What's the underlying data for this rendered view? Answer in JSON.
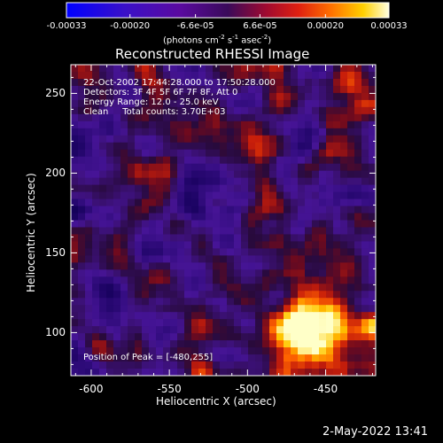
{
  "colorbar": {
    "tick_labels": [
      "-0.00033",
      "-0.00020",
      "-6.6e-05",
      "6.6e-05",
      "0.00020",
      "0.00033"
    ],
    "tick_values": [
      -0.00033,
      -0.0002,
      -6.6e-05,
      6.6e-05,
      0.0002,
      0.00033
    ],
    "range": [
      -0.00033,
      0.00033
    ],
    "units_prefix": "(photons cm",
    "units_exp1": "-2",
    "units_mid": " s",
    "units_exp2": "-1",
    "units_mid2": " asec",
    "units_exp3": "-2",
    "units_suffix": ")"
  },
  "plot": {
    "title": "Reconstructed RHESSI Image",
    "xlabel": "Heliocentric X (arcsec)",
    "ylabel": "Heliocentric Y (arcsec)",
    "x_ticks": [
      "-600",
      "-550",
      "-500",
      "-450"
    ],
    "x_tick_values": [
      -600,
      -550,
      -500,
      -450
    ],
    "y_ticks": [
      "100",
      "150",
      "200",
      "250"
    ],
    "y_tick_values": [
      100,
      150,
      200,
      250
    ],
    "xlim": [
      -613,
      -418
    ],
    "ylim": [
      73,
      268
    ],
    "info_lines": [
      "22-Oct-2002 17:44:28.000 to 17:50:28.000",
      "Detectors: 3F 4F 5F 6F 7F 8F, Att 0",
      "Energy Range: 12.0 - 25.0 keV",
      "Clean     Total counts: 3.70E+03"
    ],
    "peak_text": "Position of Peak = [-480,255]"
  },
  "footer": {
    "timestamp": "2-May-2022 13:41"
  },
  "chart_data": {
    "type": "heatmap",
    "title": "Reconstructed RHESSI Image",
    "xlabel": "Heliocentric X (arcsec)",
    "ylabel": "Heliocentric Y (arcsec)",
    "xlim": [
      -613,
      -418
    ],
    "ylim": [
      73,
      268
    ],
    "colormap": "blue-purple-red-yellow-white",
    "value_range": [
      -0.00033,
      0.00033
    ],
    "peak_position": [
      -480,
      255
    ]
  }
}
